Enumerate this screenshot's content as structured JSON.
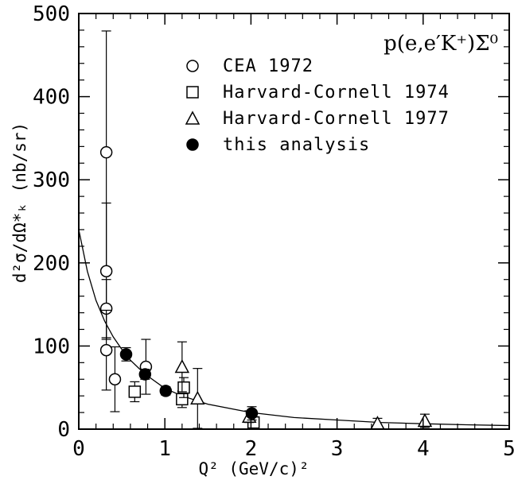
{
  "chart_data": {
    "type": "scatter",
    "title": "",
    "annotation": "p(e,e′K⁺)Σ⁰",
    "xlabel": "Q² (GeV/c)²",
    "ylabel": "d²σ/dΩ*ₖ (nb/sr)",
    "xlim": [
      0,
      5
    ],
    "ylim": [
      0,
      500
    ],
    "x_ticks": [
      "0",
      "1",
      "2",
      "3",
      "4",
      "5"
    ],
    "y_ticks": [
      "0",
      "100",
      "200",
      "300",
      "400",
      "500"
    ],
    "grid": false,
    "legend_position": "top-right",
    "series": [
      {
        "name": "CEA 1972",
        "marker": "open-circle",
        "points": [
          {
            "x": 0.32,
            "y": 333,
            "err": 146
          },
          {
            "x": 0.32,
            "y": 190,
            "err": 82
          },
          {
            "x": 0.32,
            "y": 145,
            "err": 35
          },
          {
            "x": 0.32,
            "y": 95,
            "err": 48
          },
          {
            "x": 0.42,
            "y": 60,
            "err": 39
          },
          {
            "x": 0.78,
            "y": 75,
            "err": 33
          }
        ]
      },
      {
        "name": "Harvard-Cornell 1974",
        "marker": "open-square",
        "points": [
          {
            "x": 0.65,
            "y": 45,
            "err": 12
          },
          {
            "x": 1.2,
            "y": 36,
            "err": 10
          },
          {
            "x": 1.22,
            "y": 50,
            "err": 12
          },
          {
            "x": 2.03,
            "y": 8,
            "err": 5
          }
        ]
      },
      {
        "name": "Harvard-Cornell 1977",
        "marker": "open-triangle",
        "points": [
          {
            "x": 1.2,
            "y": 75,
            "err": 30
          },
          {
            "x": 1.38,
            "y": 37,
            "err": 36
          },
          {
            "x": 1.98,
            "y": 15,
            "err": 7
          },
          {
            "x": 3.47,
            "y": 7,
            "err": 6
          },
          {
            "x": 4.02,
            "y": 10,
            "err": 8
          }
        ]
      },
      {
        "name": "this analysis",
        "marker": "filled-circle",
        "points": [
          {
            "x": 0.55,
            "y": 90,
            "err": 8
          },
          {
            "x": 0.77,
            "y": 66,
            "err": 6
          },
          {
            "x": 1.01,
            "y": 46,
            "err": 5
          },
          {
            "x": 2.01,
            "y": 19,
            "err": 8
          }
        ]
      }
    ],
    "fit_curve": {
      "description": "fit",
      "x": [
        0,
        0.1,
        0.2,
        0.3,
        0.4,
        0.5,
        0.6,
        0.7,
        0.8,
        1.0,
        1.2,
        1.5,
        2.0,
        2.5,
        3.0,
        3.5,
        4.0,
        4.5,
        5.0
      ],
      "y": [
        240,
        190,
        155,
        130,
        111,
        96,
        83,
        73,
        64,
        49,
        40,
        30,
        20,
        14,
        11,
        8,
        6.5,
        5.3,
        4.3
      ]
    }
  }
}
